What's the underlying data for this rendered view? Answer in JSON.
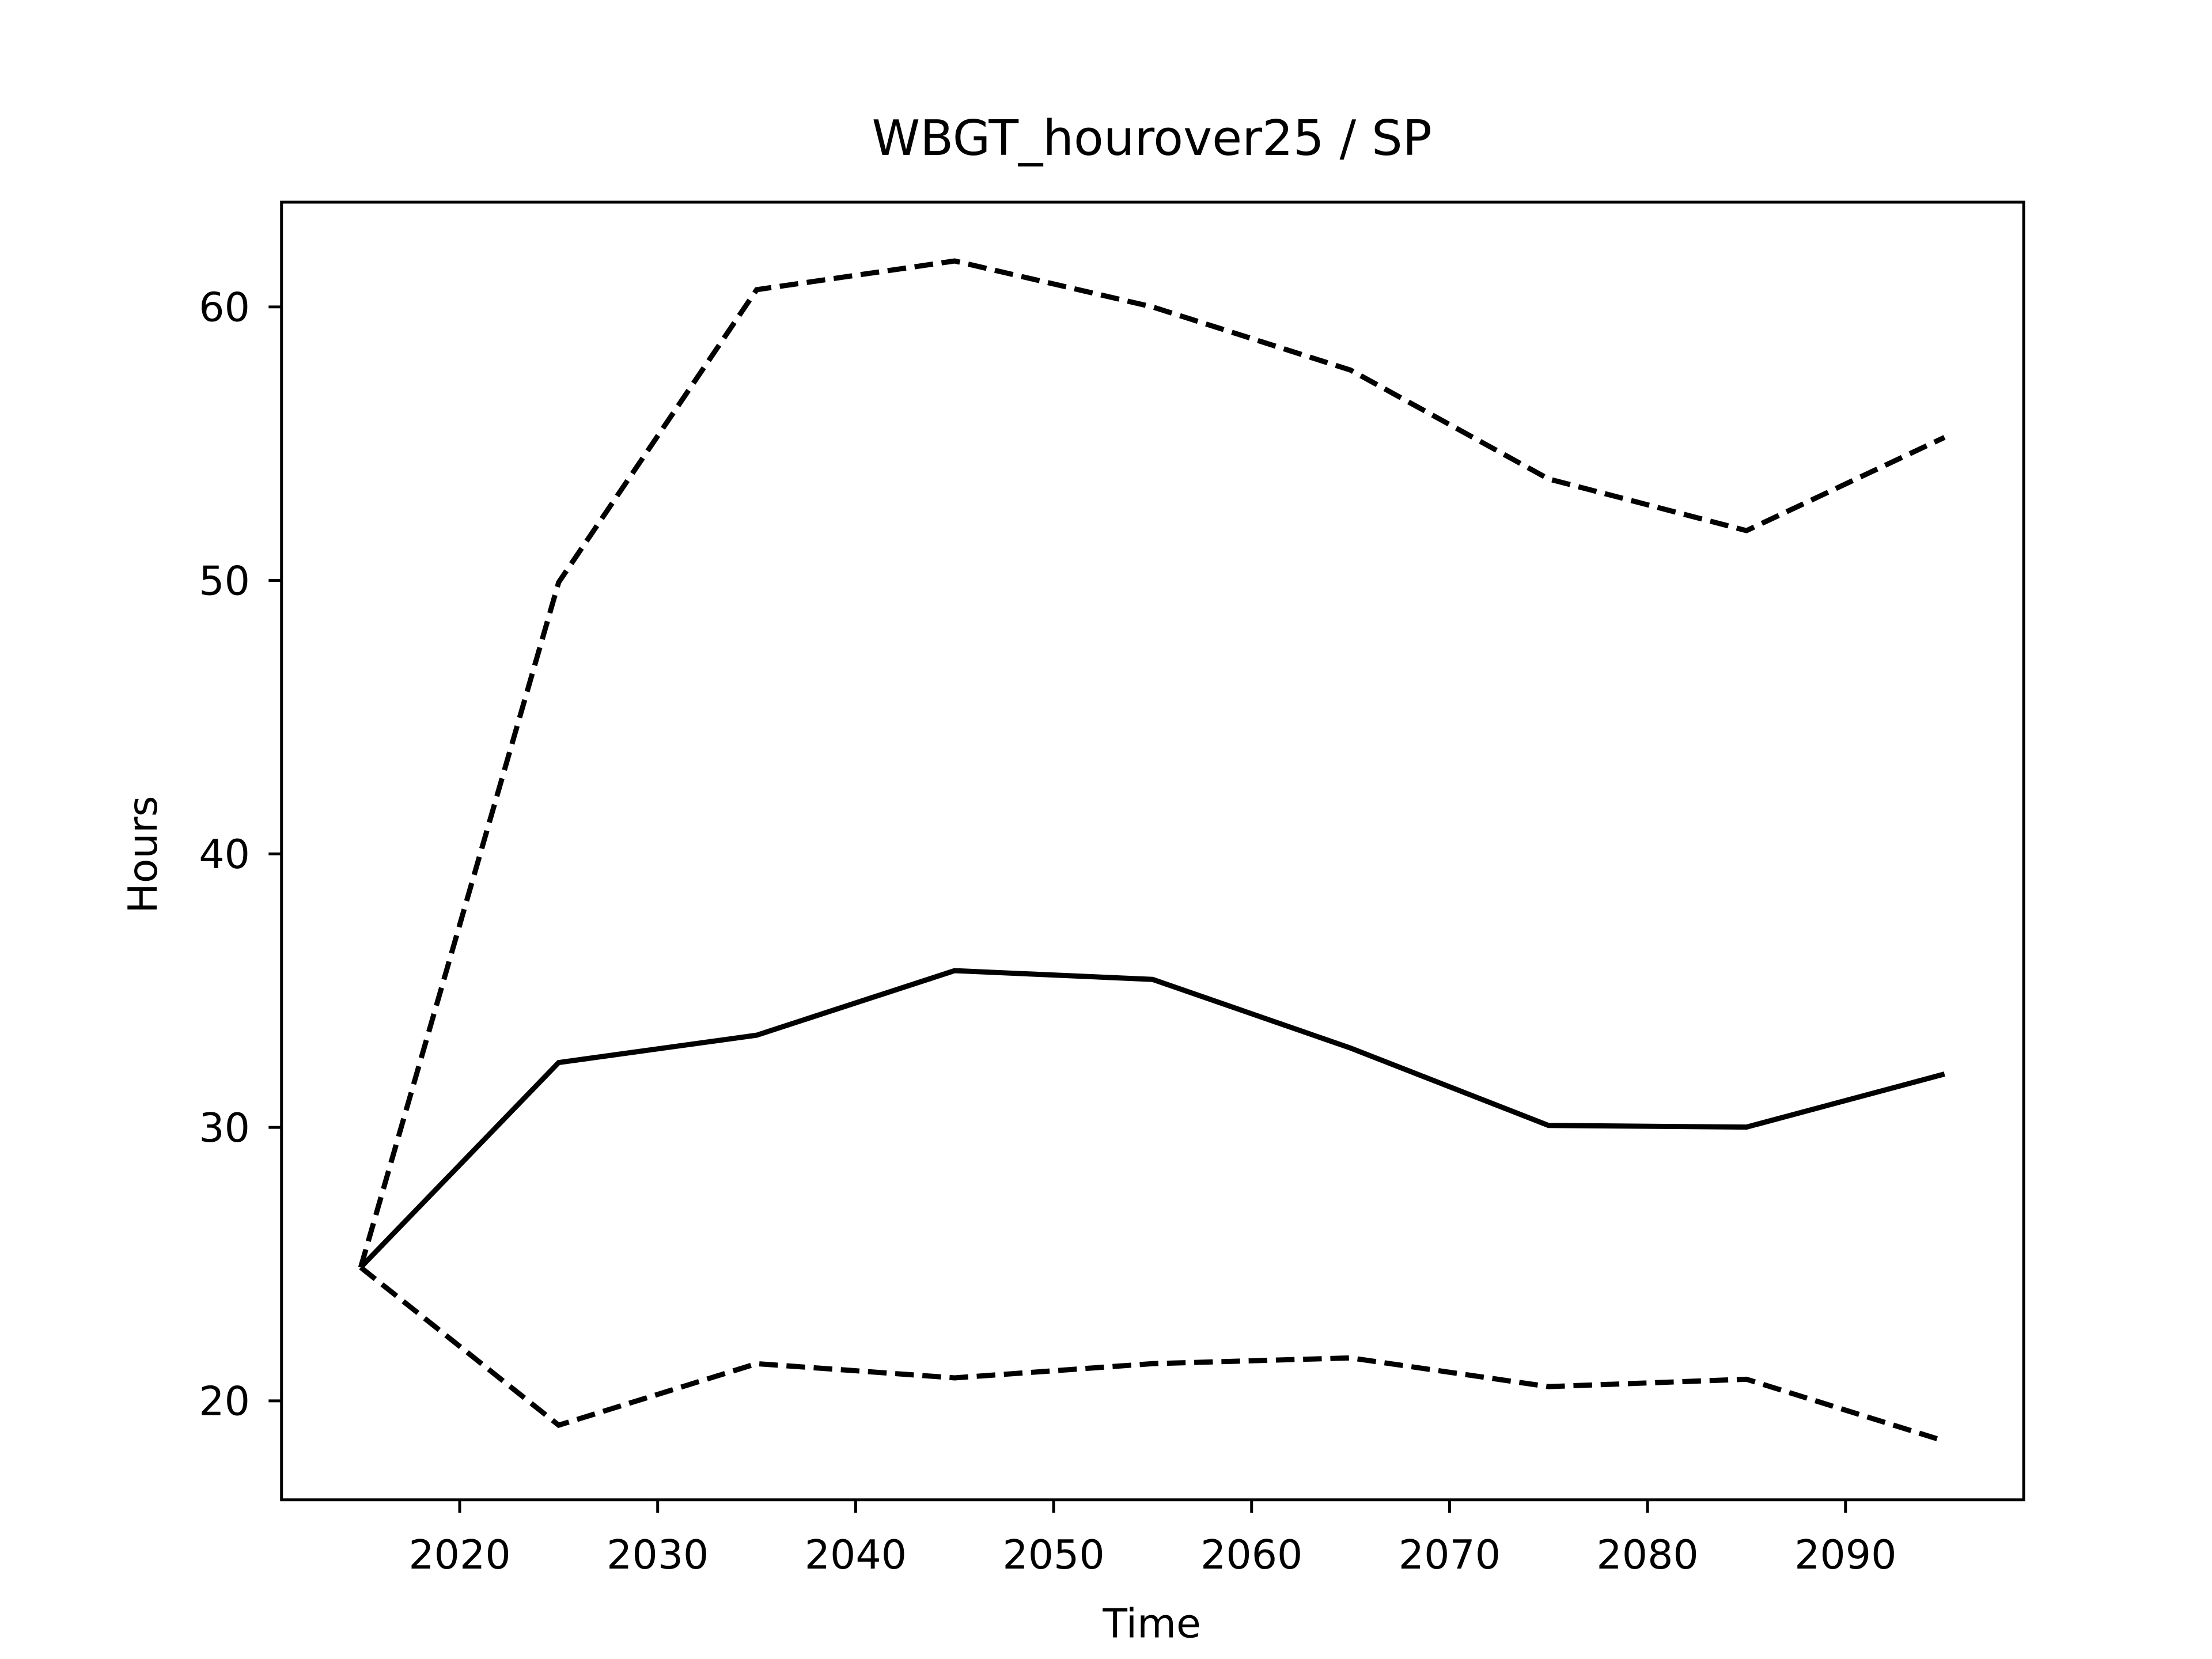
{
  "chart_data": {
    "type": "line",
    "title": "WBGT_hourover25 / SP",
    "xlabel": "Time",
    "ylabel": "Hours",
    "x": [
      2015,
      2025,
      2035,
      2045,
      2055,
      2065,
      2075,
      2085,
      2095
    ],
    "series": [
      {
        "color": "#000000",
        "linestyle": "solid",
        "values": [
          24.88,
          32.37,
          33.37,
          35.73,
          35.41,
          32.9,
          30.07,
          30.01,
          31.95
        ]
      },
      {
        "color": "#000000",
        "linestyle": "dashed",
        "values": [
          24.88,
          49.93,
          60.63,
          61.68,
          60.0,
          57.69,
          53.71,
          51.82,
          55.23
        ]
      },
      {
        "color": "#000000",
        "linestyle": "dashed",
        "values": [
          24.88,
          19.11,
          21.36,
          20.84,
          21.36,
          21.57,
          20.52,
          20.79,
          18.53
        ]
      }
    ],
    "xlim": [
      2011,
      2099
    ],
    "xticks": [
      2020,
      2030,
      2040,
      2050,
      2060,
      2070,
      2080,
      2090
    ],
    "ylim": [
      16.38,
      63.83
    ],
    "yticks": [
      20,
      30,
      40,
      50,
      60
    ],
    "grid": false
  }
}
